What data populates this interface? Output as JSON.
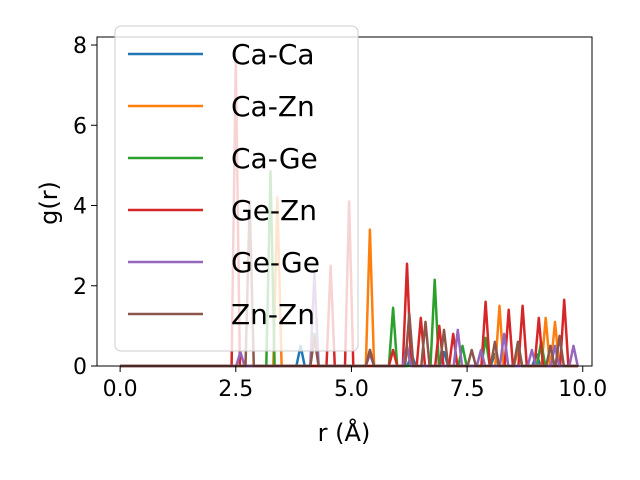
{
  "chart_data": {
    "type": "line",
    "xlabel": "r (Å)",
    "ylabel": "g(r)",
    "xlim": [
      -0.5,
      10.2
    ],
    "ylim": [
      0,
      8.2
    ],
    "xticks": [
      0.0,
      2.5,
      5.0,
      7.5,
      10.0
    ],
    "xtick_labels": [
      "0.0",
      "2.5",
      "5.0",
      "7.5",
      "10.0"
    ],
    "yticks": [
      0,
      2,
      4,
      6,
      8
    ],
    "ytick_labels": [
      "0",
      "2",
      "4",
      "6",
      "8"
    ],
    "grid": false,
    "legend_position": "upper-left",
    "series": [
      {
        "name": "Ca-Ca",
        "color": "#1f77b4",
        "peaks": [
          [
            3.9,
            0.5
          ],
          [
            5.4,
            0.4
          ],
          [
            6.3,
            0.3
          ],
          [
            7.0,
            0.35
          ],
          [
            8.1,
            0.3
          ],
          [
            9.0,
            0.3
          ]
        ]
      },
      {
        "name": "Ca-Zn",
        "color": "#ff7f0e",
        "peaks": [
          [
            3.4,
            4.2
          ],
          [
            5.4,
            3.4
          ],
          [
            6.2,
            0.4
          ],
          [
            8.2,
            1.5
          ],
          [
            8.6,
            0.4
          ],
          [
            9.2,
            1.2
          ],
          [
            9.4,
            1.1
          ]
        ]
      },
      {
        "name": "Ca-Ge",
        "color": "#2ca02c",
        "peaks": [
          [
            3.25,
            4.85
          ],
          [
            4.2,
            0.8
          ],
          [
            5.9,
            1.45
          ],
          [
            6.8,
            2.15
          ],
          [
            7.4,
            0.5
          ],
          [
            7.9,
            0.7
          ],
          [
            8.6,
            0.6
          ],
          [
            9.1,
            0.6
          ]
        ]
      },
      {
        "name": "Ge-Zn",
        "color": "#d62728",
        "peaks": [
          [
            2.5,
            7.6
          ],
          [
            4.55,
            2.5
          ],
          [
            4.95,
            4.1
          ],
          [
            5.9,
            0.4
          ],
          [
            6.2,
            2.55
          ],
          [
            6.5,
            1.2
          ],
          [
            6.9,
            1.0
          ],
          [
            7.2,
            0.8
          ],
          [
            7.9,
            1.6
          ],
          [
            8.4,
            1.4
          ],
          [
            8.7,
            1.5
          ],
          [
            9.05,
            1.2
          ],
          [
            9.6,
            1.65
          ]
        ]
      },
      {
        "name": "Ge-Ge",
        "color": "#9467bd",
        "peaks": [
          [
            2.6,
            0.35
          ],
          [
            4.2,
            2.3
          ],
          [
            5.4,
            0.3
          ],
          [
            6.2,
            0.5
          ],
          [
            7.3,
            0.9
          ],
          [
            7.8,
            0.4
          ],
          [
            8.3,
            0.8
          ],
          [
            8.9,
            0.4
          ],
          [
            9.4,
            0.5
          ],
          [
            9.8,
            0.5
          ]
        ]
      },
      {
        "name": "Zn-Zn",
        "color": "#8c564b",
        "peaks": [
          [
            2.8,
            4.1
          ],
          [
            4.2,
            0.7
          ],
          [
            5.4,
            0.4
          ],
          [
            6.25,
            1.3
          ],
          [
            6.6,
            1.1
          ],
          [
            7.0,
            0.9
          ],
          [
            7.6,
            0.4
          ],
          [
            8.1,
            0.6
          ],
          [
            8.6,
            0.6
          ],
          [
            9.3,
            0.5
          ],
          [
            9.5,
            0.75
          ]
        ]
      }
    ]
  }
}
